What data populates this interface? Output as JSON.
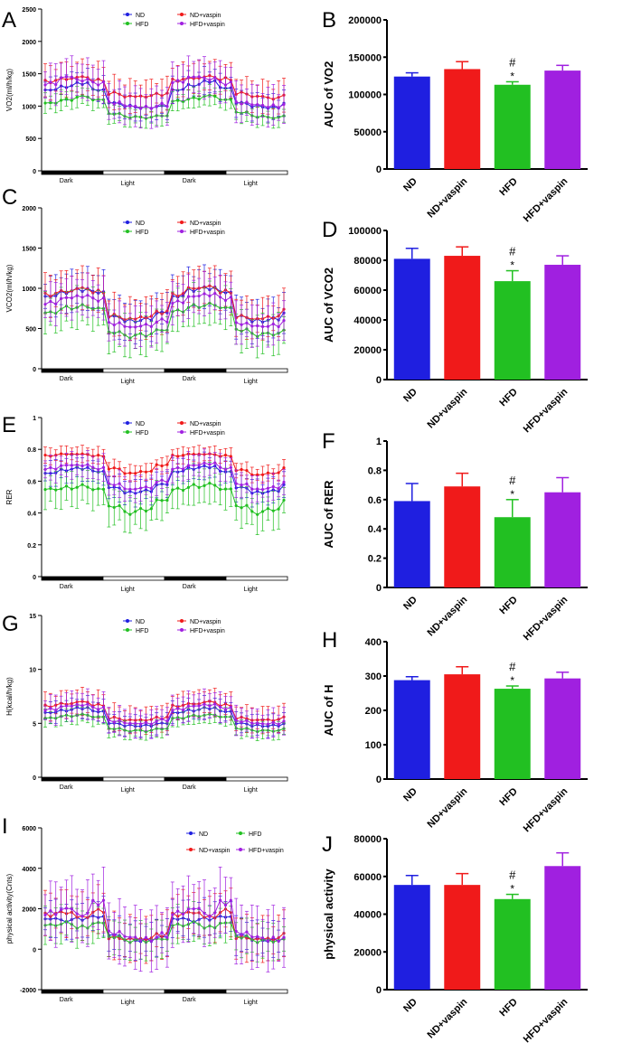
{
  "colors": {
    "ND": "#1f1fe0",
    "ND+vaspin": "#f01a1a",
    "HFD": "#22c022",
    "HFD+vaspin": "#a020e0"
  },
  "phases": [
    "Dark",
    "Light",
    "Dark",
    "Light"
  ],
  "chart_data": [
    {
      "panel": "A",
      "type": "line",
      "ylabel": "VO2(ml/h/kg)",
      "ylim": [
        0,
        2500
      ],
      "yticks": [
        0,
        500,
        1000,
        1500,
        2000,
        2500
      ],
      "legend": [
        "ND",
        "HFD",
        "ND+vaspin",
        "HFD+vaspin"
      ],
      "series": [
        {
          "name": "ND",
          "values": [
            1250,
            1300,
            1350,
            1250,
            1050,
            1000,
            980,
            1000,
            1250,
            1320,
            1380,
            1280,
            1050,
            1000,
            980,
            1050
          ],
          "err": 200
        },
        {
          "name": "ND+vaspin",
          "values": [
            1380,
            1420,
            1450,
            1400,
            1200,
            1150,
            1150,
            1180,
            1400,
            1430,
            1460,
            1420,
            1200,
            1150,
            1120,
            1150
          ],
          "err": 250
        },
        {
          "name": "HFD",
          "values": [
            1050,
            1100,
            1150,
            1100,
            880,
            830,
            820,
            850,
            1080,
            1120,
            1160,
            1100,
            900,
            840,
            820,
            850
          ],
          "err": 150
        },
        {
          "name": "HFD+vaspin",
          "values": [
            1350,
            1450,
            1400,
            1350,
            1050,
            1000,
            980,
            1020,
            1380,
            1450,
            1420,
            1350,
            1050,
            1020,
            1000,
            1050
          ],
          "err": 300
        }
      ]
    },
    {
      "panel": "C",
      "type": "line",
      "ylabel": "VCO2(ml/h/kg)",
      "ylim": [
        0,
        2000
      ],
      "yticks": [
        0,
        500,
        1000,
        1500,
        2000
      ],
      "legend": [
        "ND",
        "HFD",
        "ND+vaspin",
        "HFD+vaspin"
      ],
      "series": [
        {
          "name": "ND",
          "values": [
            900,
            950,
            980,
            950,
            650,
            600,
            620,
            700,
            900,
            980,
            1000,
            950,
            650,
            600,
            620,
            700
          ],
          "err": 250
        },
        {
          "name": "ND+vaspin",
          "values": [
            920,
            960,
            1000,
            960,
            660,
            620,
            640,
            700,
            920,
            1000,
            1020,
            960,
            650,
            620,
            640,
            720
          ],
          "err": 250
        },
        {
          "name": "HFD",
          "values": [
            700,
            760,
            780,
            750,
            450,
            400,
            420,
            480,
            720,
            780,
            800,
            760,
            480,
            420,
            430,
            480
          ],
          "err": 250
        },
        {
          "name": "HFD+vaspin",
          "values": [
            820,
            880,
            900,
            860,
            560,
            520,
            540,
            600,
            830,
            900,
            920,
            870,
            560,
            530,
            540,
            620
          ],
          "err": 250
        }
      ]
    },
    {
      "panel": "E",
      "type": "line",
      "ylabel": "RER",
      "ylim": [
        0,
        1.0
      ],
      "yticks": [
        0,
        0.2,
        0.4,
        0.6,
        0.8,
        1.0
      ],
      "legend": [
        "ND",
        "HFD",
        "ND+vaspin",
        "HFD+vaspin"
      ],
      "series": [
        {
          "name": "ND",
          "values": [
            0.65,
            0.67,
            0.68,
            0.66,
            0.56,
            0.53,
            0.54,
            0.58,
            0.66,
            0.68,
            0.69,
            0.66,
            0.56,
            0.53,
            0.54,
            0.58
          ],
          "err": 0.08
        },
        {
          "name": "ND+vaspin",
          "values": [
            0.76,
            0.77,
            0.77,
            0.76,
            0.68,
            0.65,
            0.66,
            0.7,
            0.76,
            0.77,
            0.77,
            0.76,
            0.67,
            0.64,
            0.65,
            0.68
          ],
          "err": 0.05
        },
        {
          "name": "HFD",
          "values": [
            0.55,
            0.56,
            0.57,
            0.55,
            0.44,
            0.4,
            0.42,
            0.48,
            0.55,
            0.57,
            0.58,
            0.55,
            0.44,
            0.4,
            0.42,
            0.48
          ],
          "err": 0.12
        },
        {
          "name": "HFD+vaspin",
          "values": [
            0.68,
            0.7,
            0.7,
            0.68,
            0.58,
            0.55,
            0.56,
            0.6,
            0.68,
            0.7,
            0.71,
            0.68,
            0.58,
            0.55,
            0.56,
            0.6
          ],
          "err": 0.08
        }
      ]
    },
    {
      "panel": "G",
      "type": "line",
      "ylabel": "H(kcal/h/kg)",
      "ylim": [
        0,
        15
      ],
      "yticks": [
        0,
        5,
        10,
        15
      ],
      "legend": [
        "ND",
        "HFD",
        "ND+vaspin",
        "HFD+vaspin"
      ],
      "series": [
        {
          "name": "ND",
          "values": [
            6,
            6.2,
            6.4,
            6.1,
            5,
            4.8,
            4.8,
            5,
            6,
            6.2,
            6.4,
            6.1,
            5,
            4.8,
            4.8,
            5
          ],
          "err": 1
        },
        {
          "name": "ND+vaspin",
          "values": [
            6.6,
            6.8,
            7,
            6.7,
            5.5,
            5.3,
            5.3,
            5.5,
            6.6,
            6.8,
            7,
            6.7,
            5.5,
            5.3,
            5.3,
            5.5
          ],
          "err": 1.2
        },
        {
          "name": "HFD",
          "values": [
            5.5,
            5.7,
            5.8,
            5.6,
            4.5,
            4.3,
            4.3,
            4.5,
            5.5,
            5.7,
            5.8,
            5.6,
            4.5,
            4.3,
            4.3,
            4.5
          ],
          "err": 0.8
        },
        {
          "name": "HFD+vaspin",
          "values": [
            6.3,
            6.6,
            6.7,
            6.4,
            5.2,
            5,
            5,
            5.3,
            6.3,
            6.6,
            6.7,
            6.4,
            5.2,
            5,
            5,
            5.3
          ],
          "err": 1.3
        }
      ]
    },
    {
      "panel": "I",
      "type": "line",
      "ylabel": "physical activity(Cnts)",
      "ylim": [
        -2000,
        6000
      ],
      "yticks": [
        -2000,
        0,
        2000,
        4000,
        6000
      ],
      "legend": [
        "ND",
        "ND+vaspin",
        "HFD",
        "HFD+vaspin"
      ],
      "series": [
        {
          "name": "ND",
          "values": [
            1500,
            1400,
            1500,
            1600,
            700,
            500,
            450,
            600,
            1500,
            1400,
            1500,
            1600,
            700,
            500,
            450,
            600
          ],
          "err": 900
        },
        {
          "name": "ND+vaspin",
          "values": [
            1700,
            1800,
            1600,
            1900,
            600,
            500,
            500,
            700,
            1700,
            1800,
            1600,
            1900,
            600,
            500,
            500,
            700
          ],
          "err": 1100
        },
        {
          "name": "HFD",
          "values": [
            1200,
            1300,
            1100,
            1300,
            600,
            400,
            400,
            500,
            1200,
            1300,
            1100,
            1300,
            600,
            400,
            400,
            500
          ],
          "err": 900
        },
        {
          "name": "HFD+vaspin",
          "values": [
            1800,
            2000,
            1700,
            2300,
            800,
            600,
            500,
            700,
            1800,
            2000,
            1700,
            2300,
            800,
            600,
            500,
            700
          ],
          "err": 1500
        }
      ]
    },
    {
      "panel": "B",
      "type": "bar",
      "ylabel": "AUC of VO2",
      "ylim": [
        0,
        200000
      ],
      "yticks": [
        0,
        50000,
        100000,
        150000,
        200000
      ],
      "categories": [
        "ND",
        "ND+vaspin",
        "HFD",
        "HFD+vaspin"
      ],
      "values": [
        124000,
        134000,
        113000,
        132000
      ],
      "errors": [
        5000,
        10000,
        4000,
        7000
      ],
      "annotations": {
        "HFD": [
          "#",
          "*"
        ]
      }
    },
    {
      "panel": "D",
      "type": "bar",
      "ylabel": "AUC of VCO2",
      "ylim": [
        0,
        100000
      ],
      "yticks": [
        0,
        20000,
        40000,
        60000,
        80000,
        100000
      ],
      "categories": [
        "ND",
        "ND+vaspin",
        "HFD",
        "HFD+vaspin"
      ],
      "values": [
        81000,
        83000,
        66000,
        77000
      ],
      "errors": [
        7000,
        6000,
        7000,
        6000
      ],
      "annotations": {
        "HFD": [
          "#",
          "*"
        ]
      }
    },
    {
      "panel": "F",
      "type": "bar",
      "ylabel": "AUC of RER",
      "ylim": [
        0,
        1.0
      ],
      "yticks": [
        0,
        0.2,
        0.4,
        0.6,
        0.8,
        1.0
      ],
      "categories": [
        "ND",
        "ND+vaspin",
        "HFD",
        "HFD+vaspin"
      ],
      "values": [
        0.59,
        0.69,
        0.48,
        0.65
      ],
      "errors": [
        0.12,
        0.09,
        0.12,
        0.1
      ],
      "annotations": {
        "HFD": [
          "#",
          "*"
        ]
      }
    },
    {
      "panel": "H",
      "type": "bar",
      "ylabel": "AUC of H",
      "ylim": [
        0,
        400
      ],
      "yticks": [
        0,
        100,
        200,
        300,
        400
      ],
      "categories": [
        "ND",
        "ND+vaspin",
        "HFD",
        "HFD+vaspin"
      ],
      "values": [
        288,
        305,
        263,
        293
      ],
      "errors": [
        10,
        22,
        8,
        18
      ],
      "annotations": {
        "HFD": [
          "#",
          "*"
        ]
      }
    },
    {
      "panel": "J",
      "type": "bar",
      "ylabel": "physical activity",
      "ylim": [
        0,
        80000
      ],
      "yticks": [
        0,
        20000,
        40000,
        60000,
        80000
      ],
      "categories": [
        "ND",
        "ND+vaspin",
        "HFD",
        "HFD+vaspin"
      ],
      "values": [
        55500,
        55500,
        48000,
        65500
      ],
      "errors": [
        5000,
        6000,
        2500,
        7000
      ],
      "annotations": {
        "HFD": [
          "#",
          "*"
        ]
      }
    }
  ]
}
